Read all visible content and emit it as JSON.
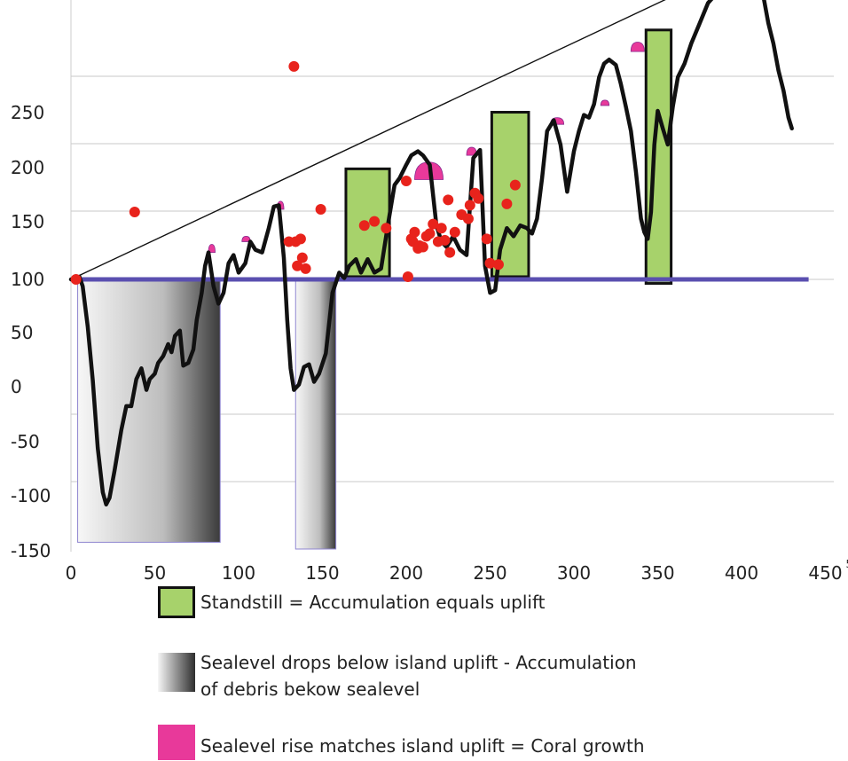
{
  "chart_data": {
    "type": "line",
    "title": "",
    "xlabel": "",
    "ylabel": "",
    "x_ticks": [
      "0",
      "50",
      "100",
      "150",
      "200",
      "250",
      "300",
      "350",
      "400",
      "450"
    ],
    "x_tick_overflow": "50",
    "y_ticks": [
      "250",
      "200",
      "150",
      "100",
      "50",
      "0",
      "-50",
      "-100",
      "-150"
    ],
    "grid": "horizontal",
    "legend_position": "bottom",
    "sealevel_line_color": "#5a4fb0",
    "curve_color": "#111111",
    "dot_color": "#e8231c",
    "standstill_color": "#a7d26b",
    "coral_color": "#e8399a",
    "envelope_line": {
      "from": [
        0,
        50
      ],
      "to": [
        410,
        290
      ]
    },
    "curve": {
      "x": [
        0,
        5,
        7,
        10,
        13,
        16,
        19,
        21,
        23,
        26,
        30,
        33,
        36,
        39,
        42,
        45,
        47,
        50,
        52,
        55,
        58,
        60,
        62,
        65,
        67,
        70,
        73,
        75,
        78,
        80,
        82,
        85,
        88,
        91,
        94,
        97,
        100,
        104,
        107,
        110,
        114,
        118,
        121,
        124,
        127,
        129,
        131,
        133,
        136,
        139,
        142,
        145,
        148,
        152,
        156,
        160,
        163,
        166,
        170,
        173,
        177,
        181,
        185,
        189,
        193,
        196,
        200,
        203,
        207,
        210,
        214,
        218,
        221,
        224,
        228,
        232,
        236,
        240,
        244,
        247,
        250,
        253,
        256,
        260,
        264,
        268,
        272,
        275,
        278,
        281,
        284,
        288,
        292,
        296,
        300,
        303,
        306,
        309,
        312,
        315,
        318,
        321,
        325,
        328,
        331,
        334,
        337,
        340,
        342,
        344,
        346,
        348,
        350,
        353,
        356,
        359,
        362,
        366,
        370,
        375,
        380,
        385,
        390,
        394,
        398,
        402,
        406,
        410,
        413,
        416,
        419,
        422,
        425,
        428,
        430
      ],
      "y": [
        50,
        52,
        45,
        15,
        -25,
        -75,
        -108,
        -117,
        -112,
        -92,
        -62,
        -44,
        -44,
        -24,
        -16,
        -32,
        -24,
        -20,
        -12,
        -7,
        2,
        -4,
        8,
        12,
        -14,
        -12,
        -2,
        20,
        40,
        60,
        70,
        45,
        32,
        40,
        62,
        68,
        55,
        62,
        78,
        72,
        70,
        88,
        104,
        105,
        66,
        20,
        -16,
        -32,
        -28,
        -15,
        -13,
        -26,
        -20,
        -5,
        40,
        55,
        51,
        60,
        65,
        55,
        65,
        55,
        58,
        90,
        120,
        125,
        135,
        142,
        145,
        142,
        135,
        90,
        78,
        74,
        82,
        72,
        68,
        140,
        146,
        60,
        40,
        42,
        72,
        88,
        82,
        90,
        88,
        84,
        95,
        125,
        160,
        168,
        150,
        115,
        145,
        160,
        172,
        170,
        180,
        200,
        210,
        213,
        209,
        195,
        178,
        160,
        130,
        95,
        85,
        80,
        100,
        150,
        175,
        162,
        150,
        178,
        200,
        210,
        225,
        240,
        255,
        262,
        270,
        285,
        290,
        290,
        289,
        282,
        260,
        240,
        225,
        205,
        190,
        170,
        162
      ]
    },
    "sealevel_line": {
      "x": [
        5,
        440
      ],
      "y": [
        50,
        50
      ]
    },
    "standstill_boxes": [
      {
        "x": [
          164,
          190
        ],
        "y": [
          52,
          132
        ]
      },
      {
        "x": [
          251,
          273
        ],
        "y": [
          52,
          174
        ]
      },
      {
        "x": [
          343,
          358
        ],
        "y": [
          47,
          235
        ]
      }
    ],
    "debris_zones": [
      {
        "x": [
          4,
          89
        ],
        "y": [
          -145,
          50
        ]
      },
      {
        "x": [
          134,
          158
        ],
        "y": [
          -150,
          50
        ]
      }
    ],
    "coral_growth": [
      {
        "x": [
          400,
          417
        ],
        "y_top": 291,
        "y_bottom": 270
      },
      {
        "x": [
          205,
          222
        ],
        "y_top": 137,
        "y_bottom": 124
      },
      {
        "x": [
          123,
          127
        ],
        "y_top": 108,
        "y_bottom": 102
      },
      {
        "x": [
          82,
          86
        ],
        "y_top": 76,
        "y_bottom": 70
      },
      {
        "x": [
          102,
          107
        ],
        "y_top": 82,
        "y_bottom": 78
      },
      {
        "x": [
          236,
          242
        ],
        "y_top": 148,
        "y_bottom": 142
      },
      {
        "x": [
          286,
          294
        ],
        "y_top": 170,
        "y_bottom": 165
      },
      {
        "x": [
          316,
          321
        ],
        "y_top": 183,
        "y_bottom": 179
      },
      {
        "x": [
          334,
          342
        ],
        "y_top": 226,
        "y_bottom": 219
      }
    ],
    "dots": {
      "x": [
        3,
        38,
        133,
        130,
        134,
        137,
        138,
        135,
        140,
        149,
        175,
        181,
        188,
        200,
        201,
        203,
        204,
        205,
        207,
        208,
        212,
        210,
        214,
        216,
        219,
        221,
        223,
        225,
        226,
        229,
        233,
        237,
        238,
        241,
        243,
        248,
        250,
        255,
        260,
        265,
        358
      ],
      "y": [
        50,
        100,
        208,
        78,
        78,
        80,
        66,
        60,
        58,
        102,
        90,
        93,
        88,
        123,
        52,
        80,
        78,
        85,
        73,
        75,
        82,
        74,
        84,
        91,
        78,
        88,
        79,
        109,
        70,
        85,
        98,
        95,
        105,
        114,
        110,
        80,
        62,
        61,
        106,
        120,
        270
      ]
    }
  },
  "legend": {
    "standstill": "Standstill = Accumulation equals uplift",
    "debris": "Sealevel drops below island uplift - Accumulation\nof debris bekow sealevel",
    "coral": "Sealevel rise matches island uplift = Coral growth"
  }
}
